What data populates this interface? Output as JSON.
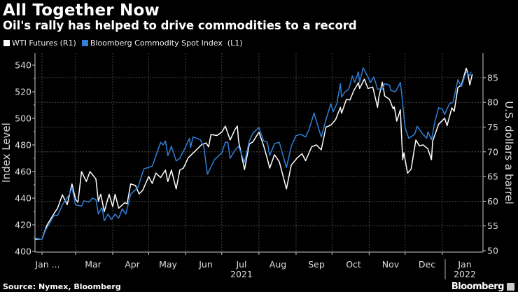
{
  "title": "All Together Now",
  "subtitle": "Oil's rally has helped to drive commodities to a record",
  "source": "Source: Nymex, Bloomberg",
  "brand": "Bloomberg",
  "chart_data": {
    "type": "line",
    "grid": true,
    "legend_placement": "top-left",
    "y_left": {
      "label": "Index Level",
      "range": [
        400,
        540
      ],
      "ticks": [
        "400",
        "420",
        "440",
        "460",
        "480",
        "500",
        "520",
        "540"
      ]
    },
    "y_right": {
      "label": "U.S. dollars a barrel",
      "range": [
        50,
        85
      ],
      "ticks": [
        "50",
        "55",
        "60",
        "65",
        "70",
        "75",
        "80",
        "85"
      ]
    },
    "x_axis": {
      "range": [
        "2021-01-26",
        "2022-01-26"
      ],
      "month_labels": [
        "Jan ...",
        "Mar",
        "Apr",
        "May",
        "Jun",
        "Jul",
        "Aug",
        "Sep",
        "Oct",
        "Nov",
        "Dec",
        "Jan"
      ],
      "year_labels": [
        "2021",
        "2022"
      ]
    },
    "series": [
      {
        "name": "WTI Futures (R1)",
        "axis": "right",
        "color": "#ffffff",
        "points": [
          [
            "2021-01-26",
            52.3
          ],
          [
            "2021-02-01",
            52.3
          ],
          [
            "2021-02-05",
            55.1
          ],
          [
            "2021-02-11",
            57.5
          ],
          [
            "2021-02-14",
            58.6
          ],
          [
            "2021-02-18",
            61.3
          ],
          [
            "2021-02-22",
            59.3
          ],
          [
            "2021-02-26",
            63.5
          ],
          [
            "2021-03-01",
            60.4
          ],
          [
            "2021-03-03",
            59.8
          ],
          [
            "2021-03-06",
            66.0
          ],
          [
            "2021-03-10",
            64.0
          ],
          [
            "2021-03-13",
            66.0
          ],
          [
            "2021-03-18",
            64.5
          ],
          [
            "2021-03-20",
            60.0
          ],
          [
            "2021-03-22",
            61.4
          ],
          [
            "2021-03-25",
            57.9
          ],
          [
            "2021-03-29",
            61.4
          ],
          [
            "2021-04-01",
            58.9
          ],
          [
            "2021-04-03",
            61.4
          ],
          [
            "2021-04-06",
            58.6
          ],
          [
            "2021-04-11",
            59.7
          ],
          [
            "2021-04-13",
            59.5
          ],
          [
            "2021-04-16",
            63.5
          ],
          [
            "2021-04-20",
            63.2
          ],
          [
            "2021-04-23",
            61.5
          ],
          [
            "2021-04-26",
            62.2
          ],
          [
            "2021-05-01",
            65.0
          ],
          [
            "2021-05-04",
            63.6
          ],
          [
            "2021-05-07",
            65.7
          ],
          [
            "2021-05-11",
            64.8
          ],
          [
            "2021-05-15",
            66.3
          ],
          [
            "2021-05-17",
            64.0
          ],
          [
            "2021-05-20",
            66.3
          ],
          [
            "2021-05-24",
            62.5
          ],
          [
            "2021-05-27",
            66.3
          ],
          [
            "2021-05-30",
            66.7
          ],
          [
            "2021-06-03",
            68.8
          ],
          [
            "2021-06-09",
            70.2
          ],
          [
            "2021-06-14",
            71.4
          ],
          [
            "2021-06-18",
            71.8
          ],
          [
            "2021-06-20",
            71.0
          ],
          [
            "2021-06-22",
            73.5
          ],
          [
            "2021-06-27",
            73.3
          ],
          [
            "2021-07-01",
            74.0
          ],
          [
            "2021-07-04",
            75.2
          ],
          [
            "2021-07-08",
            72.4
          ],
          [
            "2021-07-12",
            74.5
          ],
          [
            "2021-07-14",
            75.2
          ],
          [
            "2021-07-15",
            72.2
          ],
          [
            "2021-07-20",
            66.4
          ],
          [
            "2021-07-24",
            71.6
          ],
          [
            "2021-07-27",
            72.0
          ],
          [
            "2021-08-01",
            74.0
          ],
          [
            "2021-08-05",
            71.2
          ],
          [
            "2021-08-08",
            68.6
          ],
          [
            "2021-08-10",
            66.7
          ],
          [
            "2021-08-14",
            69.4
          ],
          [
            "2021-08-18",
            68.0
          ],
          [
            "2021-08-24",
            62.5
          ],
          [
            "2021-08-28",
            67.3
          ],
          [
            "2021-09-02",
            68.8
          ],
          [
            "2021-09-06",
            69.6
          ],
          [
            "2021-09-09",
            68.2
          ],
          [
            "2021-09-14",
            71.0
          ],
          [
            "2021-09-18",
            71.4
          ],
          [
            "2021-09-22",
            70.4
          ],
          [
            "2021-09-26",
            75.0
          ],
          [
            "2021-09-30",
            75.4
          ],
          [
            "2021-10-04",
            76.5
          ],
          [
            "2021-10-08",
            79.0
          ],
          [
            "2021-10-09",
            77.8
          ],
          [
            "2021-10-13",
            80.6
          ],
          [
            "2021-10-16",
            80.5
          ],
          [
            "2021-10-19",
            82.3
          ],
          [
            "2021-10-23",
            84.0
          ],
          [
            "2021-10-24",
            82.8
          ],
          [
            "2021-10-28",
            84.7
          ],
          [
            "2021-10-31",
            82.8
          ],
          [
            "2021-11-04",
            83.1
          ],
          [
            "2021-11-08",
            79.0
          ],
          [
            "2021-11-09",
            81.0
          ],
          [
            "2021-11-12",
            84.1
          ],
          [
            "2021-11-14",
            81.3
          ],
          [
            "2021-11-18",
            80.6
          ],
          [
            "2021-11-21",
            78.7
          ],
          [
            "2021-11-22",
            79.1
          ],
          [
            "2021-11-24",
            76.2
          ],
          [
            "2021-11-27",
            78.5
          ],
          [
            "2021-11-29",
            68.4
          ],
          [
            "2021-11-30",
            69.8
          ],
          [
            "2021-12-03",
            65.7
          ],
          [
            "2021-12-06",
            66.5
          ],
          [
            "2021-12-10",
            72.4
          ],
          [
            "2021-12-13",
            71.2
          ],
          [
            "2021-12-16",
            71.4
          ],
          [
            "2021-12-20",
            70.6
          ],
          [
            "2021-12-23",
            68.4
          ],
          [
            "2021-12-24",
            72.2
          ],
          [
            "2021-12-29",
            75.6
          ],
          [
            "2022-01-03",
            76.8
          ],
          [
            "2022-01-05",
            75.3
          ],
          [
            "2022-01-09",
            78.9
          ],
          [
            "2022-01-11",
            78.2
          ],
          [
            "2022-01-14",
            83.0
          ],
          [
            "2022-01-17",
            83.5
          ],
          [
            "2022-01-21",
            86.9
          ],
          [
            "2022-01-22",
            86.2
          ],
          [
            "2022-01-24",
            83.5
          ],
          [
            "2022-01-26",
            85.7
          ]
        ]
      },
      {
        "name": "Bloomberg Commodity Spot Index  (L1)",
        "axis": "left",
        "color": "#2f7fd8",
        "points": [
          [
            "2021-01-26",
            410
          ],
          [
            "2021-02-01",
            409
          ],
          [
            "2021-02-04",
            416
          ],
          [
            "2021-02-11",
            427
          ],
          [
            "2021-02-14",
            427
          ],
          [
            "2021-02-18",
            435
          ],
          [
            "2021-02-24",
            443
          ],
          [
            "2021-02-26",
            448
          ],
          [
            "2021-03-01",
            435
          ],
          [
            "2021-03-06",
            434
          ],
          [
            "2021-03-08",
            438
          ],
          [
            "2021-03-12",
            437
          ],
          [
            "2021-03-15",
            440
          ],
          [
            "2021-03-18",
            439
          ],
          [
            "2021-03-20",
            428
          ],
          [
            "2021-03-23",
            433
          ],
          [
            "2021-03-25",
            423
          ],
          [
            "2021-03-28",
            428
          ],
          [
            "2021-03-31",
            424
          ],
          [
            "2021-04-03",
            428
          ],
          [
            "2021-04-06",
            425
          ],
          [
            "2021-04-09",
            432
          ],
          [
            "2021-04-12",
            428
          ],
          [
            "2021-04-16",
            443
          ],
          [
            "2021-04-22",
            448
          ],
          [
            "2021-04-27",
            462
          ],
          [
            "2021-05-04",
            464
          ],
          [
            "2021-05-11",
            482
          ],
          [
            "2021-05-13",
            480
          ],
          [
            "2021-05-15",
            483
          ],
          [
            "2021-05-17",
            472
          ],
          [
            "2021-05-20",
            479
          ],
          [
            "2021-05-24",
            468
          ],
          [
            "2021-05-27",
            470
          ],
          [
            "2021-05-31",
            477
          ],
          [
            "2021-06-04",
            485
          ],
          [
            "2021-06-05",
            478
          ],
          [
            "2021-06-07",
            486
          ],
          [
            "2021-06-13",
            484
          ],
          [
            "2021-06-16",
            479
          ],
          [
            "2021-06-19",
            458
          ],
          [
            "2021-06-25",
            469
          ],
          [
            "2021-07-01",
            474
          ],
          [
            "2021-07-04",
            482
          ],
          [
            "2021-07-06",
            482
          ],
          [
            "2021-07-08",
            470
          ],
          [
            "2021-07-12",
            476
          ],
          [
            "2021-07-15",
            479
          ],
          [
            "2021-07-20",
            467
          ],
          [
            "2021-07-24",
            483
          ],
          [
            "2021-07-27",
            489
          ],
          [
            "2021-08-01",
            493
          ],
          [
            "2021-08-05",
            483
          ],
          [
            "2021-08-08",
            482
          ],
          [
            "2021-08-10",
            472
          ],
          [
            "2021-08-14",
            481
          ],
          [
            "2021-08-18",
            482
          ],
          [
            "2021-08-24",
            463
          ],
          [
            "2021-08-28",
            479
          ],
          [
            "2021-09-01",
            487
          ],
          [
            "2021-09-05",
            488
          ],
          [
            "2021-09-09",
            486
          ],
          [
            "2021-09-12",
            492
          ],
          [
            "2021-09-16",
            504
          ],
          [
            "2021-09-22",
            486
          ],
          [
            "2021-09-26",
            499
          ],
          [
            "2021-09-30",
            511
          ],
          [
            "2021-10-02",
            505
          ],
          [
            "2021-10-05",
            511
          ],
          [
            "2021-10-08",
            526
          ],
          [
            "2021-10-09",
            516
          ],
          [
            "2021-10-12",
            520
          ],
          [
            "2021-10-15",
            522
          ],
          [
            "2021-10-18",
            532
          ],
          [
            "2021-10-20",
            527
          ],
          [
            "2021-10-23",
            535
          ],
          [
            "2021-10-24",
            527
          ],
          [
            "2021-10-27",
            538
          ],
          [
            "2021-10-31",
            531
          ],
          [
            "2021-11-02",
            527
          ],
          [
            "2021-11-05",
            531
          ],
          [
            "2021-11-08",
            522
          ],
          [
            "2021-11-12",
            522
          ],
          [
            "2021-11-14",
            526
          ],
          [
            "2021-11-18",
            525
          ],
          [
            "2021-11-19",
            521
          ],
          [
            "2021-11-23",
            520
          ],
          [
            "2021-11-27",
            527
          ],
          [
            "2021-11-28",
            520
          ],
          [
            "2021-12-01",
            493
          ],
          [
            "2021-12-04",
            485
          ],
          [
            "2021-12-09",
            488
          ],
          [
            "2021-12-11",
            494
          ],
          [
            "2021-12-15",
            489
          ],
          [
            "2021-12-19",
            485
          ],
          [
            "2021-12-20",
            490
          ],
          [
            "2021-12-23",
            484
          ],
          [
            "2021-12-26",
            498
          ],
          [
            "2021-12-29",
            508
          ],
          [
            "2022-01-01",
            507
          ],
          [
            "2022-01-03",
            503
          ],
          [
            "2022-01-07",
            511
          ],
          [
            "2022-01-10",
            512
          ],
          [
            "2022-01-14",
            529
          ],
          [
            "2022-01-17",
            524
          ],
          [
            "2022-01-21",
            535
          ],
          [
            "2022-01-24",
            532
          ],
          [
            "2022-01-25",
            535
          ]
        ]
      }
    ]
  }
}
